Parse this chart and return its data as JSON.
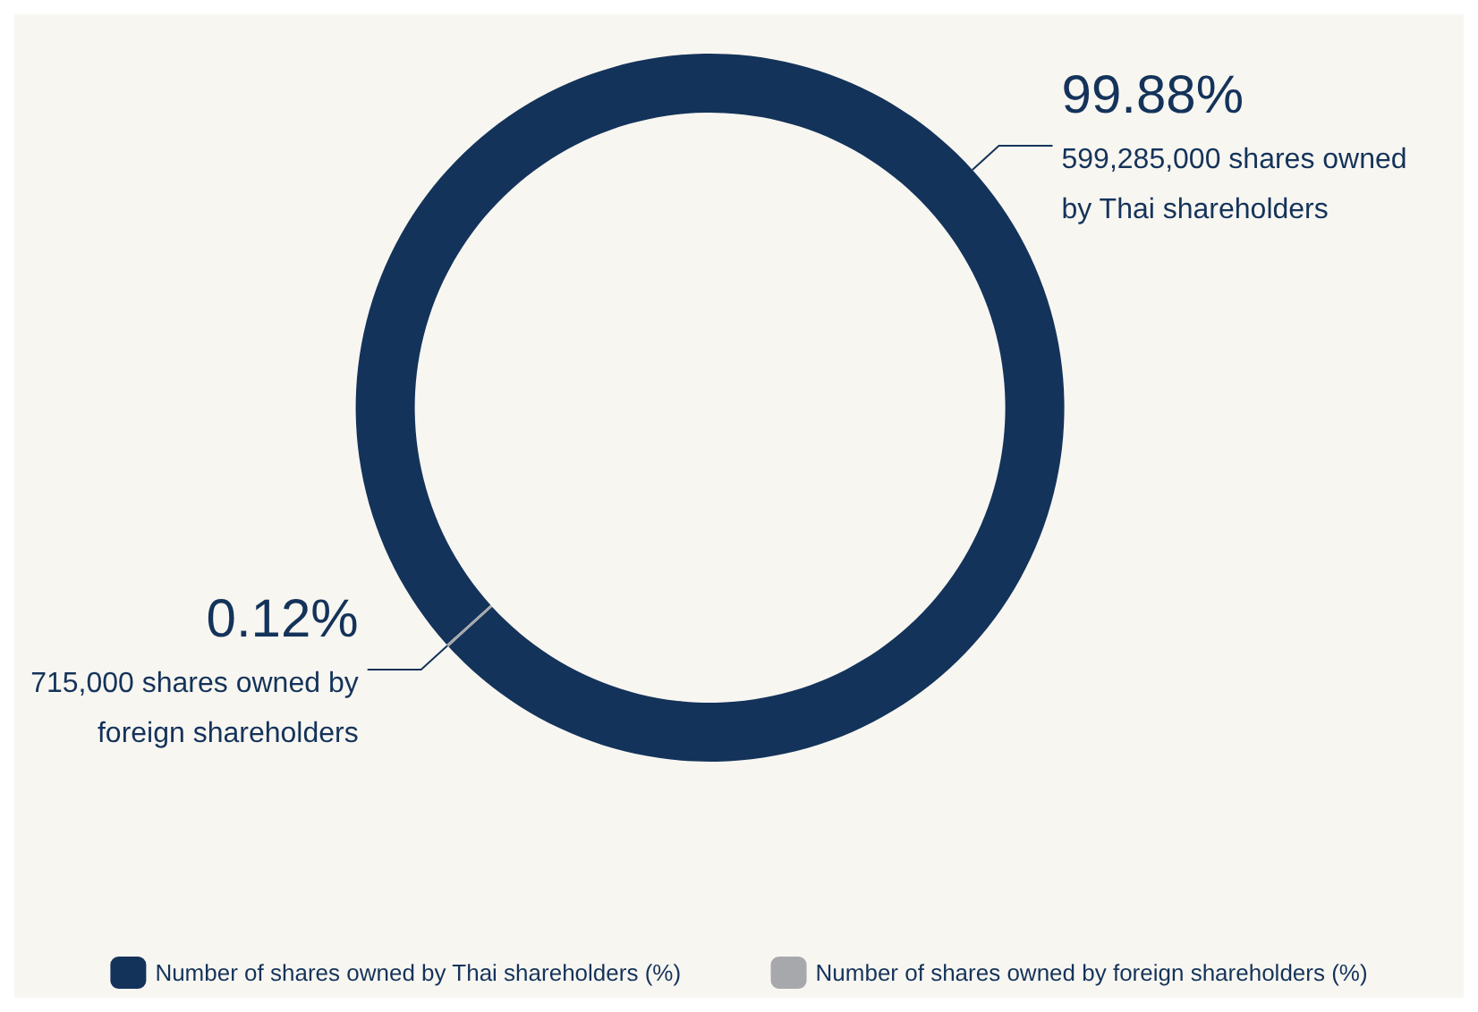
{
  "chart_data": {
    "type": "donut",
    "categories": [
      "Number of shares owned by Thai shareholders (%)",
      "Number of shares owned by foreign shareholders (%)"
    ],
    "values": [
      99.88,
      0.12
    ],
    "colors": [
      "#14335a",
      "#a7a8ab"
    ],
    "value_labels": [
      "99.88%",
      "0.12%"
    ],
    "annotations": [
      "599,285,000 shares owned by Thai shareholders",
      "715,000 shares owned by foreign shareholders"
    ],
    "legend": "bottom"
  }
}
